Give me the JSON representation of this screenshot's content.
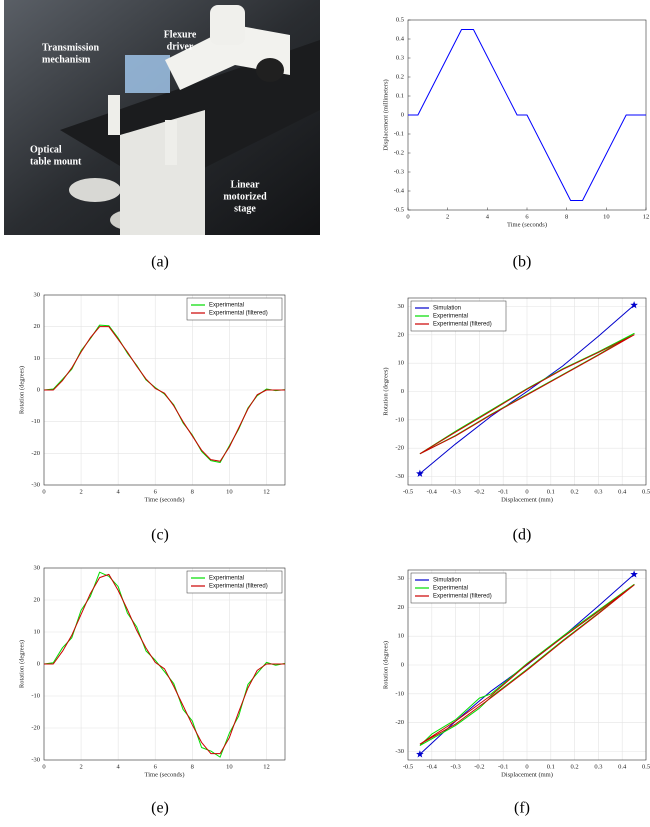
{
  "photo": {
    "caption": "(a)",
    "labels": [
      [
        "Transmission",
        "mechanism"
      ],
      [
        "Flexure",
        "driver"
      ],
      [
        "Optical",
        "table mount"
      ],
      [
        "Linear",
        "motorized",
        "stage"
      ]
    ]
  },
  "chart_data": [
    {
      "type": "line",
      "caption": "(b)",
      "xlabel": "Time (seconds)",
      "ylabel": "Displacement (millimeters)",
      "xlim": [
        0,
        12
      ],
      "xticks": [
        0,
        2,
        4,
        6,
        8,
        10,
        12
      ],
      "ylim": [
        -0.5,
        0.5
      ],
      "yticks": [
        -0.5,
        -0.4,
        -0.3,
        -0.2,
        -0.1,
        0,
        0.1,
        0.2,
        0.3,
        0.4,
        0.5
      ],
      "grid": false,
      "series": [
        {
          "color": "#0000ff",
          "x": [
            0,
            0.5,
            2.7,
            3.3,
            5.5,
            6.0,
            8.2,
            8.8,
            11.0,
            12
          ],
          "values": [
            0,
            0,
            0.45,
            0.45,
            0,
            0,
            -0.45,
            -0.45,
            0,
            0
          ]
        }
      ]
    },
    {
      "type": "line",
      "caption": "(c)",
      "xlabel": "Time (seconds)",
      "ylabel": "Rotation (degrees)",
      "xlim": [
        0,
        13
      ],
      "xticks": [
        0,
        2,
        4,
        6,
        8,
        10,
        12
      ],
      "ylim": [
        -30,
        30
      ],
      "yticks": [
        -30,
        -20,
        -10,
        0,
        10,
        20,
        30
      ],
      "grid": true,
      "legend": "upper right",
      "series": [
        {
          "name": "Experimental",
          "color": "#00dd00",
          "x": [
            0,
            0.5,
            1,
            1.5,
            2,
            2.5,
            3,
            3.5,
            4,
            4.5,
            5,
            5.5,
            6,
            6.5,
            7,
            7.5,
            8,
            8.5,
            9,
            9.5,
            10,
            10.5,
            11,
            11.5,
            12,
            12.5,
            13
          ],
          "values": [
            0,
            0.3,
            3.4,
            6.6,
            12.4,
            16.2,
            20.5,
            20.3,
            16.4,
            11.6,
            7.8,
            3.2,
            0.8,
            -1.3,
            -4.7,
            -10.4,
            -14.2,
            -19.4,
            -22.3,
            -22.9,
            -17.6,
            -12.4,
            -5.7,
            -1.8,
            0.3,
            -0.2,
            0.1
          ]
        },
        {
          "name": "Experimental (filtered)",
          "color": "#cc0000",
          "x": [
            0,
            0.5,
            1,
            1.5,
            2,
            2.5,
            3,
            3.5,
            4,
            4.5,
            5,
            5.5,
            6,
            6.5,
            7,
            7.5,
            8,
            8.5,
            9,
            9.5,
            10,
            10.5,
            11,
            11.5,
            12,
            12.5,
            13
          ],
          "values": [
            0,
            0,
            3,
            7,
            12,
            16.5,
            20,
            20,
            16,
            12,
            7.5,
            3.5,
            0.5,
            -1,
            -5,
            -10,
            -14.5,
            -19,
            -22,
            -22.5,
            -18,
            -12,
            -6,
            -1.5,
            0,
            0,
            0
          ]
        }
      ]
    },
    {
      "type": "line",
      "caption": "(d)",
      "xlabel": "Displacement (mm)",
      "ylabel": "Rotation (degrees)",
      "xlim": [
        -0.5,
        0.5
      ],
      "xticks": [
        -0.5,
        -0.4,
        -0.3,
        -0.2,
        -0.1,
        0,
        0.1,
        0.2,
        0.3,
        0.4,
        0.5
      ],
      "ylim": [
        -33,
        33
      ],
      "yticks": [
        -30,
        -20,
        -10,
        0,
        10,
        20,
        30
      ],
      "grid": true,
      "legend": "upper left",
      "series": [
        {
          "name": "Simulation",
          "color": "#0000cc",
          "marker": "star",
          "x": [
            -0.45,
            -0.3,
            -0.15,
            0,
            0.15,
            0.3,
            0.45
          ],
          "values": [
            -29,
            -18.5,
            -8.7,
            0,
            9,
            19.5,
            30.5
          ]
        },
        {
          "name": "Experimental",
          "color": "#00dd00",
          "x": [
            -0.45,
            -0.3,
            -0.15,
            0,
            0.15,
            0.3,
            0.45,
            0.3,
            0.15,
            0,
            -0.15,
            -0.3,
            -0.45
          ],
          "values": [
            -22,
            -14,
            -6.5,
            1,
            8,
            14,
            20.5,
            13,
            6,
            -1,
            -8,
            -15.5,
            -22
          ]
        },
        {
          "name": "Experimental (filtered)",
          "color": "#cc0000",
          "x": [
            -0.45,
            -0.3,
            -0.15,
            0,
            0.15,
            0.3,
            0.45,
            0.3,
            0.15,
            0,
            -0.15,
            -0.3,
            -0.45
          ],
          "values": [
            -22,
            -14.3,
            -6.8,
            0.8,
            7.8,
            13.8,
            20,
            12.8,
            5.8,
            -1.2,
            -8.2,
            -15.7,
            -22
          ]
        }
      ]
    },
    {
      "type": "line",
      "caption": "(e)",
      "xlabel": "Time (seconds)",
      "ylabel": "Rotation (degrees)",
      "xlim": [
        0,
        13
      ],
      "xticks": [
        0,
        2,
        4,
        6,
        8,
        10,
        12
      ],
      "ylim": [
        -30,
        30
      ],
      "yticks": [
        -30,
        -20,
        -10,
        0,
        10,
        20,
        30
      ],
      "grid": true,
      "legend": "upper right",
      "series": [
        {
          "name": "Experimental",
          "color": "#00dd00",
          "x": [
            0,
            0.5,
            1,
            1.5,
            2,
            2.5,
            3,
            3.5,
            4,
            4.5,
            5,
            5.5,
            6,
            6.5,
            7,
            7.5,
            8,
            8.5,
            9,
            9.5,
            10,
            10.5,
            11,
            11.5,
            12,
            12.5,
            13
          ],
          "values": [
            0,
            0.4,
            5.1,
            8.2,
            16.8,
            21.1,
            28.7,
            27.4,
            24.2,
            15.9,
            11.6,
            4.1,
            1.2,
            -2.4,
            -6.1,
            -14.2,
            -17.8,
            -26.1,
            -27.2,
            -29.1,
            -21.6,
            -16.3,
            -6.4,
            -2.9,
            0.5,
            -0.4,
            0.2
          ]
        },
        {
          "name": "Experimental (filtered)",
          "color": "#cc0000",
          "x": [
            0,
            0.5,
            1,
            1.5,
            2,
            2.5,
            3,
            3.5,
            4,
            4.5,
            5,
            5.5,
            6,
            6.5,
            7,
            7.5,
            8,
            8.5,
            9,
            9.5,
            10,
            10.5,
            11,
            11.5,
            12,
            12.5,
            13
          ],
          "values": [
            0,
            0,
            4,
            9,
            15.5,
            22,
            27,
            28,
            23,
            17,
            10.5,
            5,
            0.5,
            -1.5,
            -7,
            -13,
            -19,
            -24.5,
            -28,
            -28,
            -23,
            -15,
            -7.5,
            -2,
            0,
            0,
            0
          ]
        }
      ]
    },
    {
      "type": "line",
      "caption": "(f)",
      "xlabel": "Displacement (mm)",
      "ylabel": "Rotation (degrees)",
      "xlim": [
        -0.5,
        0.5
      ],
      "xticks": [
        -0.5,
        -0.4,
        -0.3,
        -0.2,
        -0.1,
        0,
        0.1,
        0.2,
        0.3,
        0.4,
        0.5
      ],
      "ylim": [
        -33,
        33
      ],
      "yticks": [
        -30,
        -20,
        -10,
        0,
        10,
        20,
        30
      ],
      "grid": true,
      "legend": "upper left",
      "series": [
        {
          "name": "Simulation",
          "color": "#0000cc",
          "marker": "star",
          "x": [
            -0.45,
            -0.3,
            -0.15,
            0,
            0.15,
            0.3,
            0.45
          ],
          "values": [
            -31,
            -19.5,
            -9,
            0,
            9.8,
            20.5,
            31.5
          ]
        },
        {
          "name": "Experimental",
          "color": "#00dd00",
          "x": [
            -0.45,
            -0.4,
            -0.3,
            -0.2,
            -0.15,
            0,
            0.15,
            0.3,
            0.45,
            0.3,
            0.15,
            0,
            -0.15,
            -0.2,
            -0.3,
            -0.45
          ],
          "values": [
            -28,
            -24,
            -19,
            -11.5,
            -10,
            0.5,
            10,
            19,
            28,
            18,
            8.5,
            -1.5,
            -11,
            -15,
            -21,
            -28
          ]
        },
        {
          "name": "Experimental (filtered)",
          "color": "#cc0000",
          "x": [
            -0.45,
            -0.3,
            -0.15,
            0,
            0.15,
            0.3,
            0.45,
            0.3,
            0.15,
            0,
            -0.15,
            -0.3,
            -0.45
          ],
          "values": [
            -27.5,
            -19.5,
            -10.5,
            0.2,
            9.6,
            18.6,
            27.8,
            17.8,
            8.2,
            -1.8,
            -11.3,
            -20.5,
            -27.5
          ]
        }
      ]
    }
  ]
}
